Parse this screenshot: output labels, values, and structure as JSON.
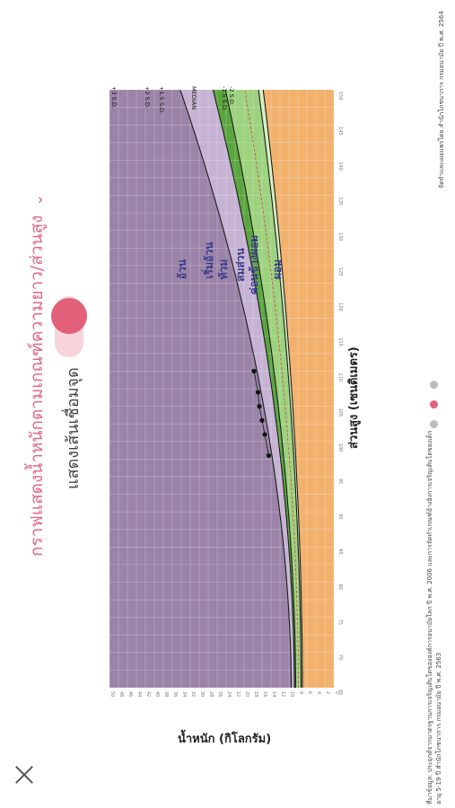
{
  "header": {
    "title": "กราฟแสดงน้ำหนักตามเกณฑ์ความยาว/ส่วนสูง",
    "toggle_label": "แสดงเส้นเชื่อมจุด",
    "toggle_on": true
  },
  "chart_data": {
    "type": "line",
    "xlabel": "ส่วนสูง (เซนติเมตร)",
    "ylabel": "น้ำหนัก (กิโลกรัม)",
    "curve_labels": [
      "+3 S.D.",
      "+2 S.D.",
      "+1.5 S.D.",
      "MEDIAN",
      "-1.5 S.D.",
      "-2 S.D."
    ],
    "zone_labels": [
      "อ้วน",
      "เริ่มอ้วน",
      "ท้วม",
      "สมส่วน",
      "ค่อนข้างผอม",
      "ผอม"
    ],
    "zone_colors": {
      "obese": "#9b84a8",
      "overweight": "#c6b3d4",
      "plump": "#5aa63e",
      "normal": "#9dd27e",
      "thin": "#d6f0c2",
      "wasted": "#f2b26e"
    },
    "points": [
      {
        "height": 98,
        "weight": 14.5
      },
      {
        "height": 101,
        "weight": 15.4
      },
      {
        "height": 103,
        "weight": 16.0
      },
      {
        "height": 105,
        "weight": 16.6
      },
      {
        "height": 107,
        "weight": 16.9
      },
      {
        "height": 110,
        "weight": 17.8
      }
    ]
  },
  "footnote": {
    "line1": "ที่มาข้อมูล: ประยุกต์จากมาตรฐานการเจริญเติบโตขององค์การอนามัยโลก ปี พ.ศ. 2006 และการจัดทำเกณฑ์อ้างอิงการเจริญเติบโตของเด็ก",
    "line2": "อายุ 5-19 ปี สำนักโภชนาการ กรมอนามัย ปี พ.ศ. 2563",
    "credit": "จัดทำและเผยแพร่โดย สำนักโภชนาการ กรมอนามัย ปี พ.ศ. 2564"
  },
  "pager": {
    "total": 3,
    "active": 1,
    "active_color": "#e2607a",
    "inactive_color": "#bbbbbb"
  }
}
